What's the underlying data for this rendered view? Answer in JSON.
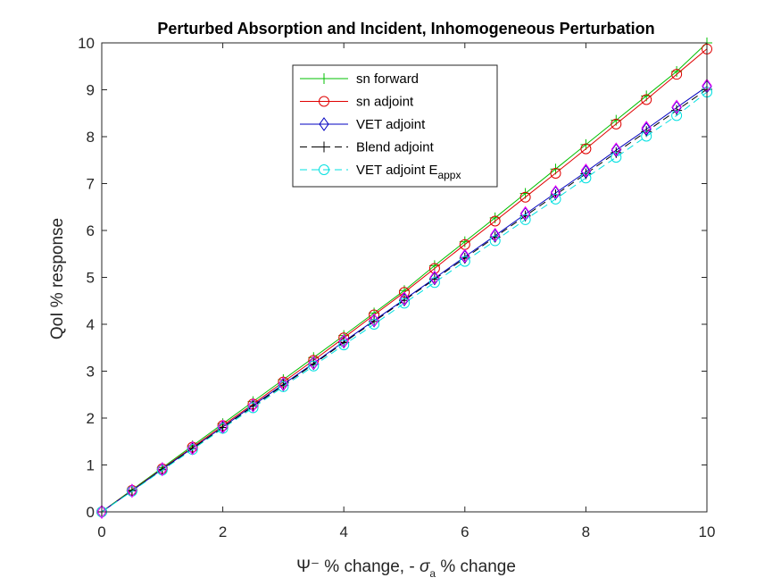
{
  "chart_data": {
    "type": "line",
    "title": "Perturbed Absorption and Incident, Inhomogeneous Perturbation",
    "xlabel_parts": [
      "Ψ",
      "⁻",
      " % change, - ",
      "σ",
      "a",
      " % change"
    ],
    "ylabel": "QoI % response",
    "xlim": [
      0,
      10
    ],
    "ylim": [
      0,
      10
    ],
    "xticks": [
      0,
      2,
      4,
      6,
      8,
      10
    ],
    "yticks": [
      0,
      1,
      2,
      3,
      4,
      5,
      6,
      7,
      8,
      9,
      10
    ],
    "legend_location": "top-center",
    "grid": false,
    "x": [
      0,
      0.5,
      1,
      1.5,
      2,
      2.5,
      3,
      3.5,
      4,
      4.5,
      5,
      5.5,
      6,
      6.5,
      7,
      7.5,
      8,
      8.5,
      9,
      9.5,
      10
    ],
    "series": [
      {
        "name": "sn forward",
        "legend_main": "sn forward",
        "legend_sub": "",
        "color": "#00c000",
        "marker": "plus",
        "dash": "solid",
        "values": [
          0,
          0.47,
          0.94,
          1.41,
          1.88,
          2.35,
          2.82,
          3.29,
          3.76,
          4.24,
          4.72,
          5.25,
          5.76,
          6.27,
          6.79,
          7.31,
          7.83,
          8.35,
          8.87,
          9.39,
          10.0
        ]
      },
      {
        "name": "sn adjoint",
        "legend_main": "sn adjoint",
        "legend_sub": "",
        "color": "#e00000",
        "marker": "circle",
        "dash": "solid",
        "values": [
          0,
          0.46,
          0.92,
          1.38,
          1.84,
          2.3,
          2.77,
          3.23,
          3.71,
          4.2,
          4.68,
          5.19,
          5.7,
          6.2,
          6.71,
          7.22,
          7.74,
          8.27,
          8.79,
          9.33,
          9.87
        ]
      },
      {
        "name": "VET adjoint",
        "legend_main": "VET adjoint",
        "legend_sub": "",
        "color": "#0000c0",
        "marker": "diamond",
        "dash": "solid",
        "values": [
          0,
          0.45,
          0.91,
          1.36,
          1.81,
          2.27,
          2.72,
          3.17,
          3.63,
          4.08,
          4.53,
          4.98,
          5.44,
          5.89,
          6.35,
          6.8,
          7.25,
          7.71,
          8.16,
          8.62,
          9.07
        ]
      },
      {
        "name": "Blend adjoint",
        "legend_main": "Blend adjoint",
        "legend_sub": "",
        "color": "#000000",
        "marker": "plus",
        "dash": "dashed",
        "values": [
          0,
          0.45,
          0.9,
          1.35,
          1.8,
          2.25,
          2.7,
          3.15,
          3.61,
          4.06,
          4.51,
          4.96,
          5.41,
          5.86,
          6.31,
          6.76,
          7.21,
          7.66,
          8.11,
          8.56,
          9.01
        ]
      },
      {
        "name": "VET adjoint E_appx",
        "legend_main": "VET adjoint E",
        "legend_sub": "appx",
        "color": "#00e0e0",
        "marker": "circle",
        "dash": "dashed",
        "values": [
          0,
          0.44,
          0.89,
          1.33,
          1.78,
          2.22,
          2.67,
          3.11,
          3.56,
          4.0,
          4.45,
          4.89,
          5.34,
          5.78,
          6.23,
          6.67,
          7.12,
          7.56,
          8.01,
          8.45,
          8.95
        ]
      }
    ],
    "extra_markers": {
      "color": "#ff00ff",
      "marker": "diamond",
      "values": [
        0,
        0.45,
        0.91,
        1.36,
        1.82,
        2.27,
        2.73,
        3.18,
        3.64,
        4.09,
        4.55,
        5.0,
        5.46,
        5.91,
        6.37,
        6.82,
        7.28,
        7.73,
        8.19,
        8.64,
        9.09
      ]
    }
  }
}
